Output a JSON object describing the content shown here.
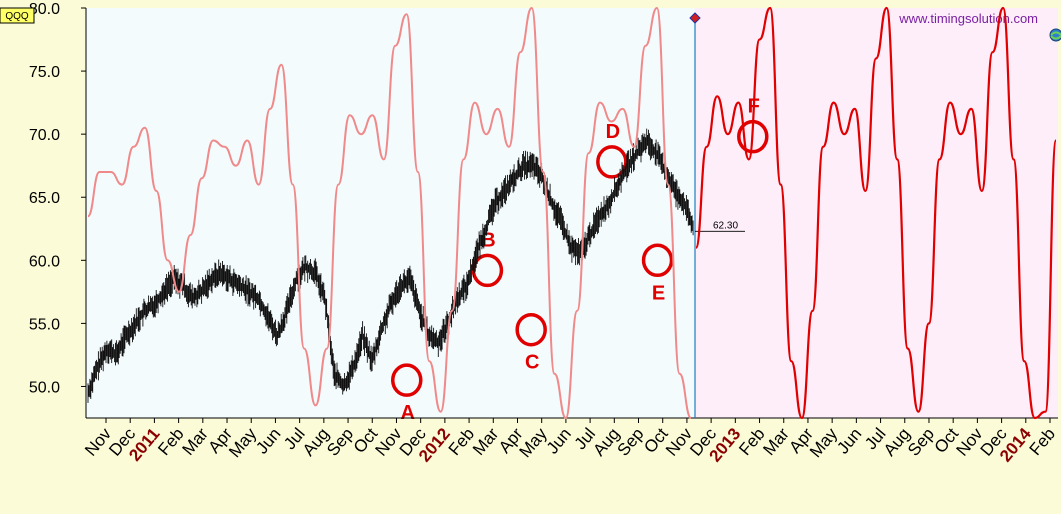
{
  "symbol": "QQQ",
  "watermark": "www.timingsolution.com",
  "last_price_label": "62.30",
  "colors": {
    "price": "#111111",
    "cycle_past": "#f08a8a",
    "cycle_projection": "#e00000",
    "circle": "#e00000",
    "history_bg": "#f3fbfd",
    "projection_bg": "#fdeefa",
    "divider": "#1e7fbf"
  },
  "chart_data": {
    "type": "line",
    "ylim": [
      47.5,
      80.0
    ],
    "y_ticks": [
      "50.0",
      "55.0",
      "60.0",
      "65.0",
      "70.0",
      "75.0",
      "80.0"
    ],
    "x_labels": [
      {
        "text": "Nov",
        "year": false
      },
      {
        "text": "Dec",
        "year": false
      },
      {
        "text": "2011",
        "year": true
      },
      {
        "text": "Feb",
        "year": false
      },
      {
        "text": "Mar",
        "year": false
      },
      {
        "text": "Apr",
        "year": false
      },
      {
        "text": "May",
        "year": false
      },
      {
        "text": "Jun",
        "year": false
      },
      {
        "text": "Jul",
        "year": false
      },
      {
        "text": "Aug",
        "year": false
      },
      {
        "text": "Sep",
        "year": false
      },
      {
        "text": "Oct",
        "year": false
      },
      {
        "text": "Nov",
        "year": false
      },
      {
        "text": "Dec",
        "year": false
      },
      {
        "text": "2012",
        "year": true
      },
      {
        "text": "Feb",
        "year": false
      },
      {
        "text": "Mar",
        "year": false
      },
      {
        "text": "Apr",
        "year": false
      },
      {
        "text": "May",
        "year": false
      },
      {
        "text": "Jun",
        "year": false
      },
      {
        "text": "Jul",
        "year": false
      },
      {
        "text": "Aug",
        "year": false
      },
      {
        "text": "Sep",
        "year": false
      },
      {
        "text": "Oct",
        "year": false
      },
      {
        "text": "Nov",
        "year": false
      },
      {
        "text": "Dec",
        "year": false
      },
      {
        "text": "2013",
        "year": true
      },
      {
        "text": "Feb",
        "year": false
      },
      {
        "text": "Mar",
        "year": false
      },
      {
        "text": "Apr",
        "year": false
      },
      {
        "text": "May",
        "year": false
      },
      {
        "text": "Jun",
        "year": false
      },
      {
        "text": "Jul",
        "year": false
      },
      {
        "text": "Aug",
        "year": false
      },
      {
        "text": "Sep",
        "year": false
      },
      {
        "text": "Oct",
        "year": false
      },
      {
        "text": "Nov",
        "year": false
      },
      {
        "text": "Dec",
        "year": false
      },
      {
        "text": "2014",
        "year": true
      },
      {
        "text": "Feb",
        "year": false
      }
    ],
    "series": [
      {
        "values": [
          49.5,
          51.5,
          53.0,
          52.5,
          54.0,
          55.0,
          56.0,
          56.5,
          57.5,
          58.5,
          58.0,
          57.0,
          57.5,
          58.5,
          59.0,
          58.5,
          58.0,
          57.5,
          57.0,
          55.5,
          54.0,
          56.0,
          58.5,
          59.5,
          59.0,
          57.0,
          51.0,
          50.0,
          51.5,
          54.0,
          52.0,
          54.5,
          56.5,
          58.0,
          58.5,
          56.0,
          54.0,
          53.5,
          55.0,
          57.0,
          58.0,
          60.5,
          62.5,
          64.5,
          65.5,
          66.5,
          67.5,
          67.5,
          66.5,
          64.5,
          63.0,
          61.0,
          60.5,
          62.0,
          63.5,
          64.5,
          66.0,
          67.5,
          68.5,
          69.5,
          68.5,
          67.0,
          65.5,
          64.5,
          62.3
        ]
      },
      {
        "values": [
          63.5,
          67.0,
          67.0,
          66.0,
          69.0,
          70.5,
          65.5,
          60.0,
          57.5,
          62.0,
          66.5,
          69.5,
          69.0,
          67.5,
          69.5,
          66.0,
          72.0,
          75.5,
          66.0,
          53.0,
          48.5,
          53.0,
          66.0,
          71.5,
          70.0,
          71.5,
          68.0,
          77.0,
          79.5,
          67.0,
          52.0,
          48.0,
          56.0,
          68.0,
          72.5,
          70.0,
          72.0,
          69.0,
          76.5,
          80.0,
          67.0,
          51.0,
          47.5,
          56.0,
          68.5,
          72.5,
          71.0,
          72.0,
          69.0,
          77.0,
          80.0,
          66.0,
          51.0,
          47.5
        ]
      },
      {
        "values": [
          61.0,
          69.0,
          73.0,
          70.0,
          72.5,
          68.0,
          77.5,
          80.0,
          66.0,
          52.0,
          47.5,
          56.0,
          69.0,
          72.5,
          70.0,
          72.0,
          65.5,
          76.0,
          80.0,
          68.0,
          53.0,
          48.0,
          55.0,
          68.0,
          72.5,
          70.0,
          72.0,
          65.5,
          76.5,
          80.0,
          68.0,
          52.0,
          47.5,
          48.0,
          69.5
        ]
      }
    ],
    "annotations": [
      {
        "label": "A",
        "x": 0.33,
        "y": 50.5
      },
      {
        "label": "B",
        "x": 0.413,
        "y": 59.2
      },
      {
        "label": "C",
        "x": 0.458,
        "y": 54.5
      },
      {
        "label": "D",
        "x": 0.541,
        "y": 67.8
      },
      {
        "label": "E",
        "x": 0.588,
        "y": 60.0
      },
      {
        "label": "F",
        "x": 0.686,
        "y": 69.8
      }
    ]
  }
}
